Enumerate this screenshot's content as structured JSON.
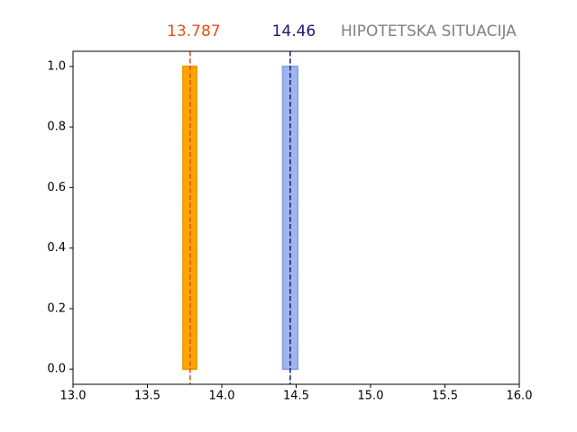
{
  "chart_data": {
    "type": "histogram",
    "title": "HIPOTETSKA SITUACIJA",
    "series": [
      {
        "color": "#ffa500",
        "edgecolor": "#f59a00",
        "bins": [
          13.74,
          13.83
        ],
        "values": [
          1
        ]
      },
      {
        "color": "#a0b4f0",
        "edgecolor": "#8ca4e8",
        "bins": [
          14.41,
          14.51
        ],
        "values": [
          1
        ]
      }
    ],
    "vlines": [
      {
        "x": 13.787,
        "color": "#e0501a"
      },
      {
        "x": 14.46,
        "color": "#191970"
      }
    ],
    "xlim": [
      13.0,
      16.0
    ],
    "xticks": [
      {
        "value": 13.0,
        "label": "13.0"
      },
      {
        "value": 13.5,
        "label": "13.5"
      },
      {
        "value": 14.0,
        "label": "14.0"
      },
      {
        "value": 14.5,
        "label": "14.5"
      },
      {
        "value": 15.0,
        "label": "15.0"
      },
      {
        "value": 15.5,
        "label": "15.5"
      },
      {
        "value": 16.0,
        "label": "16.0"
      }
    ],
    "ylim": [
      -0.05,
      1.05
    ],
    "yticks": [
      {
        "value": 0.0,
        "label": "0.0"
      },
      {
        "value": 0.2,
        "label": "0.2"
      },
      {
        "value": 0.4,
        "label": "0.4"
      },
      {
        "value": 0.6,
        "label": "0.6"
      },
      {
        "value": 0.8,
        "label": "0.8"
      },
      {
        "value": 1.0,
        "label": "1.0"
      }
    ],
    "title_color": "#808080"
  }
}
